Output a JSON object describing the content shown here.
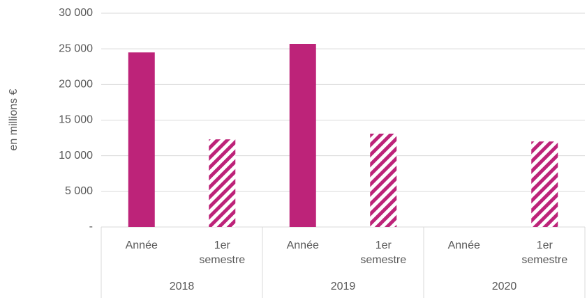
{
  "chart_data": {
    "type": "bar",
    "y_label": "en millions €",
    "categories": [
      "2018",
      "2019",
      "2020"
    ],
    "series": [
      {
        "name": "Année",
        "color": "#bd2379",
        "fill": "solid",
        "values": [
          24500,
          25700,
          null
        ]
      },
      {
        "name": "1er semestre",
        "color": "#bd2379",
        "fill": "hatch",
        "values": [
          12300,
          13100,
          12000
        ]
      }
    ],
    "ylim": [
      0,
      30000
    ],
    "yticks": [
      {
        "value": 0,
        "label": "-"
      },
      {
        "value": 5000,
        "label": "5 000"
      },
      {
        "value": 10000,
        "label": "10 000"
      },
      {
        "value": 15000,
        "label": "15 000"
      },
      {
        "value": 20000,
        "label": "20 000"
      },
      {
        "value": 25000,
        "label": "25 000"
      },
      {
        "value": 30000,
        "label": "30 000"
      }
    ],
    "grid": true
  }
}
